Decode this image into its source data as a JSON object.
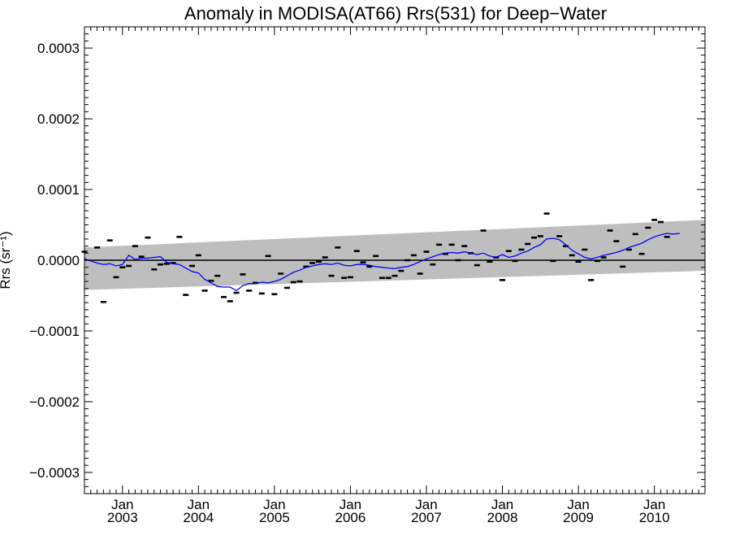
{
  "chart_data": {
    "type": "line",
    "title": "Anomaly in MODISA(AT66) Rrs(531) for Deep−Water",
    "xlabel": "",
    "ylabel": "Rrs (sr⁻¹)",
    "xlim": [
      "2002-07",
      "2010-09"
    ],
    "ylim": [
      -0.00033,
      0.00033
    ],
    "y_ticks": [
      {
        "value": 0.0003,
        "label": "0.0003"
      },
      {
        "value": 0.0002,
        "label": "0.0002"
      },
      {
        "value": 0.0001,
        "label": "0.0001"
      },
      {
        "value": 0.0,
        "label": "0.0000"
      },
      {
        "value": -0.0001,
        "label": "−0.0001"
      },
      {
        "value": -0.0002,
        "label": "−0.0002"
      },
      {
        "value": -0.0003,
        "label": "−0.0003"
      }
    ],
    "x_ticks": [
      {
        "date": "2003-01",
        "month": "Jan",
        "year": "2003"
      },
      {
        "date": "2004-01",
        "month": "Jan",
        "year": "2004"
      },
      {
        "date": "2005-01",
        "month": "Jan",
        "year": "2005"
      },
      {
        "date": "2006-01",
        "month": "Jan",
        "year": "2006"
      },
      {
        "date": "2007-01",
        "month": "Jan",
        "year": "2007"
      },
      {
        "date": "2008-01",
        "month": "Jan",
        "year": "2008"
      },
      {
        "date": "2009-01",
        "month": "Jan",
        "year": "2009"
      },
      {
        "date": "2010-01",
        "month": "Jan",
        "year": "2010"
      }
    ],
    "grid": false,
    "reference_line": 0.0,
    "band": {
      "color": "#bebebe",
      "start": {
        "date": "2002-07",
        "lower": -4.2e-05,
        "upper": 1.8e-05
      },
      "end": {
        "date": "2010-09",
        "lower": -1.5e-05,
        "upper": 5.7e-05
      }
    },
    "series": [
      {
        "type": "marker",
        "color": "#000000",
        "points": [
          [
            "2002-07",
            1.2e-05
          ],
          [
            "2002-09",
            1.8e-05
          ],
          [
            "2002-10",
            -5.9e-05
          ],
          [
            "2002-11",
            2.8e-05
          ],
          [
            "2002-12",
            -2.4e-05
          ],
          [
            "2003-01",
            -1e-05
          ],
          [
            "2003-02",
            -8e-06
          ],
          [
            "2003-03",
            2e-05
          ],
          [
            "2003-04",
            5e-06
          ],
          [
            "2003-05",
            3.2e-05
          ],
          [
            "2003-06",
            -1.3e-05
          ],
          [
            "2003-07",
            -6e-06
          ],
          [
            "2003-08",
            -5e-06
          ],
          [
            "2003-09",
            -4e-06
          ],
          [
            "2003-10",
            3.3e-05
          ],
          [
            "2003-11",
            -4.9e-05
          ],
          [
            "2003-12",
            -8e-06
          ],
          [
            "2004-01",
            7e-06
          ],
          [
            "2004-02",
            -4.3e-05
          ],
          [
            "2004-03",
            -2.9e-05
          ],
          [
            "2004-04",
            -2.2e-05
          ],
          [
            "2004-05",
            -5.2e-05
          ],
          [
            "2004-06",
            -5.8e-05
          ],
          [
            "2004-07",
            -4.6e-05
          ],
          [
            "2004-08",
            -2e-05
          ],
          [
            "2004-09",
            -4.3e-05
          ],
          [
            "2004-10",
            -3.2e-05
          ],
          [
            "2004-11",
            -4.7e-05
          ],
          [
            "2004-12",
            6e-06
          ],
          [
            "2005-01",
            -4.8e-05
          ],
          [
            "2005-02",
            -1.9e-05
          ],
          [
            "2005-03",
            -3.9e-05
          ],
          [
            "2005-04",
            -3.1e-05
          ],
          [
            "2005-05",
            -3e-05
          ],
          [
            "2005-06",
            -9e-06
          ],
          [
            "2005-07",
            -4e-06
          ],
          [
            "2005-08",
            -2e-06
          ],
          [
            "2005-09",
            4e-06
          ],
          [
            "2005-10",
            -2.2e-05
          ],
          [
            "2005-11",
            1.8e-05
          ],
          [
            "2005-12",
            -2.5e-05
          ],
          [
            "2006-01",
            -2.4e-05
          ],
          [
            "2006-02",
            1.3e-05
          ],
          [
            "2006-03",
            -3e-06
          ],
          [
            "2006-04",
            -9e-06
          ],
          [
            "2006-05",
            6e-06
          ],
          [
            "2006-06",
            -2.5e-05
          ],
          [
            "2006-07",
            -2.5e-05
          ],
          [
            "2006-08",
            -2.2e-05
          ],
          [
            "2006-09",
            -1.5e-05
          ],
          [
            "2006-10",
            0.0
          ],
          [
            "2006-11",
            7e-06
          ],
          [
            "2006-12",
            -1.9e-05
          ],
          [
            "2007-01",
            1.2e-05
          ],
          [
            "2007-02",
            -6e-06
          ],
          [
            "2007-03",
            2.2e-05
          ],
          [
            "2007-04",
            9e-06
          ],
          [
            "2007-05",
            2.2e-05
          ],
          [
            "2007-06",
            0.0
          ],
          [
            "2007-07",
            2e-05
          ],
          [
            "2007-08",
            1e-05
          ],
          [
            "2007-09",
            -7e-06
          ],
          [
            "2007-10",
            4.2e-05
          ],
          [
            "2007-11",
            -2e-06
          ],
          [
            "2007-12",
            4e-06
          ],
          [
            "2008-01",
            -2.8e-05
          ],
          [
            "2008-02",
            1.3e-05
          ],
          [
            "2008-03",
            -1e-06
          ],
          [
            "2008-04",
            1.5e-05
          ],
          [
            "2008-05",
            2.3e-05
          ],
          [
            "2008-06",
            3.2e-05
          ],
          [
            "2008-07",
            3.4e-05
          ],
          [
            "2008-08",
            6.6e-05
          ],
          [
            "2008-09",
            -1e-06
          ],
          [
            "2008-10",
            3.4e-05
          ],
          [
            "2008-11",
            2e-05
          ],
          [
            "2008-12",
            7e-06
          ],
          [
            "2009-01",
            -2e-06
          ],
          [
            "2009-02",
            1.5e-05
          ],
          [
            "2009-03",
            -2.8e-05
          ],
          [
            "2009-04",
            -1e-06
          ],
          [
            "2009-05",
            4e-06
          ],
          [
            "2009-06",
            4.2e-05
          ],
          [
            "2009-07",
            2.7e-05
          ],
          [
            "2009-08",
            -9e-06
          ],
          [
            "2009-09",
            1.5e-05
          ],
          [
            "2009-10",
            3.7e-05
          ],
          [
            "2009-11",
            9e-06
          ],
          [
            "2009-12",
            4.6e-05
          ],
          [
            "2010-01",
            5.7e-05
          ],
          [
            "2010-02",
            5.4e-05
          ],
          [
            "2010-03",
            3.3e-05
          ]
        ]
      },
      {
        "type": "line",
        "color": "#0000ff",
        "points": [
          [
            "2002-07",
            2e-06
          ],
          [
            "2002-08",
            -1e-06
          ],
          [
            "2002-09",
            -4e-06
          ],
          [
            "2002-10",
            -6e-06
          ],
          [
            "2002-11",
            -5e-06
          ],
          [
            "2002-12",
            -8e-06
          ],
          [
            "2003-01",
            -6e-06
          ],
          [
            "2003-02",
            7e-06
          ],
          [
            "2003-03",
            1e-06
          ],
          [
            "2003-04",
            3e-06
          ],
          [
            "2003-05",
            3e-06
          ],
          [
            "2003-06",
            4e-06
          ],
          [
            "2003-07",
            5e-06
          ],
          [
            "2003-08",
            -3e-06
          ],
          [
            "2003-09",
            -5e-06
          ],
          [
            "2003-10",
            -6e-06
          ],
          [
            "2003-11",
            -1.1e-05
          ],
          [
            "2003-12",
            -1.6e-05
          ],
          [
            "2004-01",
            -1.8e-05
          ],
          [
            "2004-02",
            -2.7e-05
          ],
          [
            "2004-03",
            -3.2e-05
          ],
          [
            "2004-04",
            -3.7e-05
          ],
          [
            "2004-05",
            -3.8e-05
          ],
          [
            "2004-06",
            -3.8e-05
          ],
          [
            "2004-07",
            -4.3e-05
          ],
          [
            "2004-08",
            -3.6e-05
          ],
          [
            "2004-09",
            -3.3e-05
          ],
          [
            "2004-10",
            -3.3e-05
          ],
          [
            "2004-11",
            -3.1e-05
          ],
          [
            "2004-12",
            -3.2e-05
          ],
          [
            "2005-01",
            -3e-05
          ],
          [
            "2005-02",
            -2.7e-05
          ],
          [
            "2005-03",
            -2.2e-05
          ],
          [
            "2005-04",
            -1.7e-05
          ],
          [
            "2005-05",
            -1.4e-05
          ],
          [
            "2005-06",
            -1e-05
          ],
          [
            "2005-07",
            -8e-06
          ],
          [
            "2005-08",
            -6e-06
          ],
          [
            "2005-09",
            -5e-06
          ],
          [
            "2005-10",
            -6e-06
          ],
          [
            "2005-11",
            -4e-06
          ],
          [
            "2005-12",
            -7e-06
          ],
          [
            "2006-01",
            -8e-06
          ],
          [
            "2006-02",
            -6e-06
          ],
          [
            "2006-03",
            -6e-06
          ],
          [
            "2006-04",
            -7e-06
          ],
          [
            "2006-05",
            -9e-06
          ],
          [
            "2006-06",
            -1e-05
          ],
          [
            "2006-07",
            -1.1e-05
          ],
          [
            "2006-08",
            -1.2e-05
          ],
          [
            "2006-09",
            -1e-05
          ],
          [
            "2006-10",
            -9e-06
          ],
          [
            "2006-11",
            -6e-06
          ],
          [
            "2006-12",
            -2e-06
          ],
          [
            "2007-01",
            2e-06
          ],
          [
            "2007-02",
            5e-06
          ],
          [
            "2007-03",
            8e-06
          ],
          [
            "2007-04",
            1e-05
          ],
          [
            "2007-05",
            1.1e-05
          ],
          [
            "2007-06",
            1e-05
          ],
          [
            "2007-07",
            1.2e-05
          ],
          [
            "2007-08",
            1e-05
          ],
          [
            "2007-09",
            8e-06
          ],
          [
            "2007-10",
            1e-05
          ],
          [
            "2007-11",
            6e-06
          ],
          [
            "2007-12",
            4e-06
          ],
          [
            "2008-01",
            8e-06
          ],
          [
            "2008-02",
            4e-06
          ],
          [
            "2008-03",
            6e-06
          ],
          [
            "2008-04",
            1e-05
          ],
          [
            "2008-05",
            1.3e-05
          ],
          [
            "2008-06",
            1.8e-05
          ],
          [
            "2008-07",
            2.2e-05
          ],
          [
            "2008-08",
            3e-05
          ],
          [
            "2008-09",
            3.1e-05
          ],
          [
            "2008-10",
            2.9e-05
          ],
          [
            "2008-11",
            2.2e-05
          ],
          [
            "2008-12",
            1.4e-05
          ],
          [
            "2009-01",
            9e-06
          ],
          [
            "2009-02",
            4e-06
          ],
          [
            "2009-03",
            2e-06
          ],
          [
            "2009-04",
            4e-06
          ],
          [
            "2009-05",
            7e-06
          ],
          [
            "2009-06",
            9e-06
          ],
          [
            "2009-07",
            1.1e-05
          ],
          [
            "2009-08",
            1.4e-05
          ],
          [
            "2009-09",
            1.8e-05
          ],
          [
            "2009-10",
            2.1e-05
          ],
          [
            "2009-11",
            2.4e-05
          ],
          [
            "2009-12",
            2.9e-05
          ],
          [
            "2010-01",
            3.3e-05
          ],
          [
            "2010-02",
            3.6e-05
          ],
          [
            "2010-03",
            3.8e-05
          ],
          [
            "2010-04",
            3.7e-05
          ],
          [
            "2010-05",
            3.8e-05
          ]
        ]
      }
    ]
  }
}
